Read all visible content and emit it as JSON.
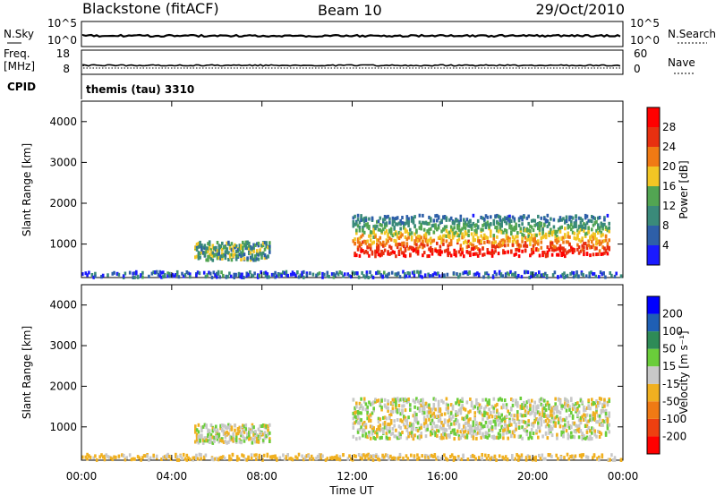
{
  "header": {
    "station": "Blackstone (fitACF)",
    "beam": "Beam 10",
    "date": "29/Oct/2010"
  },
  "top_panel": {
    "left_label": "N.Sky",
    "right_label": "N.Search",
    "left_ticks": [
      "10^5",
      "10^0"
    ],
    "right_ticks": [
      "10^5",
      "10^0"
    ]
  },
  "freq_panel": {
    "left_label_1": "Freq.",
    "left_label_2": "[MHz]",
    "right_label": "Nave",
    "left_ticks": [
      "18",
      "8"
    ],
    "right_ticks": [
      "60",
      "0"
    ]
  },
  "cpid_panel": {
    "label": "CPID",
    "text": "themis (tau) 3310"
  },
  "colors": {
    "power_scale": [
      "#1a1aff",
      "#2e5fa8",
      "#3a8a7a",
      "#52a552",
      "#f2c624",
      "#f07a14",
      "#e83010",
      "#ff0000"
    ],
    "velocity_scale": [
      "#0000ff",
      "#1f5fb4",
      "#2e8b57",
      "#6acd3a",
      "#c8c8c8",
      "#f0b020",
      "#f07a14",
      "#ee4010",
      "#ff0000"
    ]
  },
  "chart_data": [
    {
      "type": "heatmap",
      "title": "",
      "xlabel": "",
      "ylabel": "Slant Range [km]",
      "xlim": [
        0,
        24
      ],
      "ylim": [
        180,
        4500
      ],
      "y_ticks": [
        "1000",
        "2000",
        "3000",
        "4000"
      ],
      "colorbar": {
        "label": "Power [dB]",
        "range": [
          0,
          32
        ],
        "ticks": [
          "4",
          "8",
          "12",
          "16",
          "20",
          "24",
          "28"
        ]
      },
      "regions": [
        {
          "t_start": 5.0,
          "t_end": 8.3,
          "range_low": 600,
          "range_high": 1050,
          "typical_value": 12
        },
        {
          "t_start": 12.0,
          "t_end": 23.4,
          "range_low": 700,
          "range_high": 1700,
          "typical_value": 20
        },
        {
          "t_start": 0.0,
          "t_end": 24.0,
          "range_low": 180,
          "range_high": 320,
          "typical_value": 6
        }
      ]
    },
    {
      "type": "heatmap",
      "title": "",
      "xlabel": "Time UT",
      "ylabel": "Slant Range [km]",
      "xlim": [
        0,
        24
      ],
      "ylim": [
        180,
        4500
      ],
      "y_ticks": [
        "1000",
        "2000",
        "3000",
        "4000"
      ],
      "x_ticks": [
        "00:00",
        "04:00",
        "08:00",
        "12:00",
        "16:00",
        "20:00",
        "00:00"
      ],
      "colorbar": {
        "label": "Velocity [m s⁻¹]",
        "range": [
          -250,
          250
        ],
        "ticks": [
          "200",
          "100",
          "50",
          "15",
          "-15",
          "-50",
          "-100",
          "-200"
        ]
      },
      "regions": [
        {
          "t_start": 5.0,
          "t_end": 8.3,
          "range_low": 600,
          "range_high": 1050,
          "typical_value": 0
        },
        {
          "t_start": 12.0,
          "t_end": 23.4,
          "range_low": 700,
          "range_high": 1700,
          "typical_value": 0
        },
        {
          "t_start": 0.0,
          "t_end": 24.0,
          "range_low": 180,
          "range_high": 320,
          "typical_value": -30
        }
      ]
    }
  ]
}
